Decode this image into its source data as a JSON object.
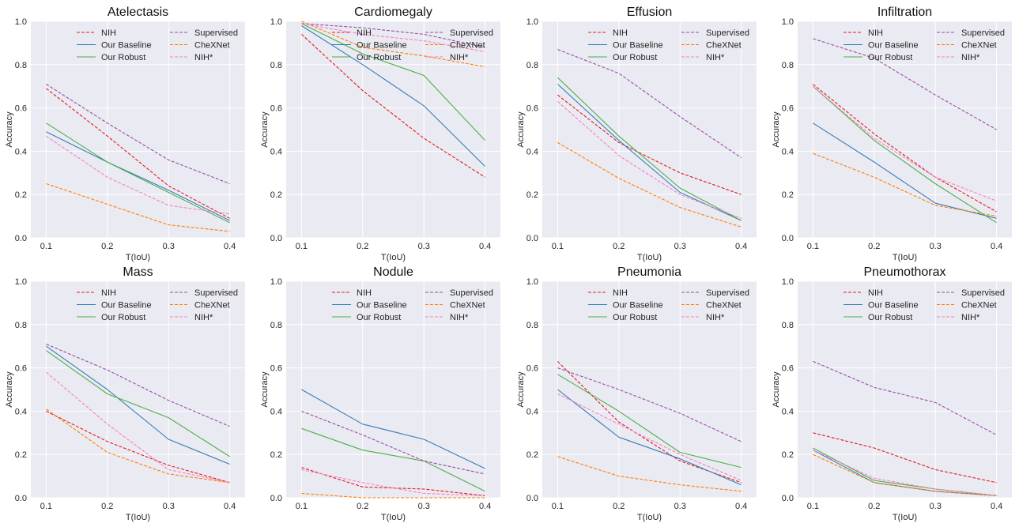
{
  "figure": {
    "colors": {
      "NIH": "#e41a1c",
      "Our Baseline": "#377eb8",
      "Our Robust": "#4daf4a",
      "Supervised": "#984ea3",
      "CheXNet": "#ff7f00",
      "NIH*": "#f781bf",
      "plot_background": "#eaeaf2",
      "grid": "#ffffff"
    }
  },
  "chart_data": [
    {
      "type": "line",
      "title": "Atelectasis",
      "xlabel": "T(IoU)",
      "ylabel": "Accuracy",
      "x": [
        0.1,
        0.2,
        0.3,
        0.4
      ],
      "xticks": [
        "0.1",
        "0.2",
        "0.3",
        "0.4"
      ],
      "ylim": [
        0,
        1
      ],
      "yticks": [
        "0.0",
        "0.2",
        "0.4",
        "0.6",
        "0.8",
        "1.0"
      ],
      "grid": true,
      "legend": "top-right, two columns",
      "series": [
        {
          "name": "NIH",
          "style": "dashed",
          "values": [
            0.69,
            0.47,
            0.24,
            0.09
          ]
        },
        {
          "name": "Our Baseline",
          "style": "solid",
          "values": [
            0.49,
            0.35,
            0.22,
            0.08
          ]
        },
        {
          "name": "Our Robust",
          "style": "solid",
          "values": [
            0.53,
            0.35,
            0.21,
            0.07
          ]
        },
        {
          "name": "Supervised",
          "style": "dashed",
          "values": [
            0.71,
            0.53,
            0.36,
            0.25
          ]
        },
        {
          "name": "CheXNet",
          "style": "dashed",
          "values": [
            0.25,
            0.155,
            0.06,
            0.03
          ]
        },
        {
          "name": "NIH*",
          "style": "dashed",
          "values": [
            0.47,
            0.28,
            0.15,
            0.11
          ]
        }
      ]
    },
    {
      "type": "line",
      "title": "Cardiomegaly",
      "xlabel": "T(IoU)",
      "ylabel": "Accuracy",
      "x": [
        0.1,
        0.2,
        0.3,
        0.4
      ],
      "xticks": [
        "0.1",
        "0.2",
        "0.3",
        "0.4"
      ],
      "ylim": [
        0,
        1
      ],
      "yticks": [
        "0.0",
        "0.2",
        "0.4",
        "0.6",
        "0.8",
        "1.0"
      ],
      "grid": true,
      "legend": "top-right, two columns",
      "series": [
        {
          "name": "NIH",
          "style": "dashed",
          "values": [
            0.94,
            0.68,
            0.46,
            0.28
          ]
        },
        {
          "name": "Our Baseline",
          "style": "solid",
          "values": [
            0.98,
            0.8,
            0.61,
            0.33
          ]
        },
        {
          "name": "Our Robust",
          "style": "solid",
          "values": [
            0.99,
            0.85,
            0.75,
            0.45
          ]
        },
        {
          "name": "Supervised",
          "style": "dashed",
          "values": [
            0.99,
            0.97,
            0.94,
            0.88
          ]
        },
        {
          "name": "CheXNet",
          "style": "dashed",
          "values": [
            1.0,
            0.88,
            0.84,
            0.79
          ]
        },
        {
          "name": "NIH*",
          "style": "dashed",
          "values": [
            0.99,
            0.94,
            0.91,
            0.86
          ]
        }
      ]
    },
    {
      "type": "line",
      "title": "Effusion",
      "xlabel": "T(IoU)",
      "ylabel": "Accuracy",
      "x": [
        0.1,
        0.2,
        0.3,
        0.4
      ],
      "xticks": [
        "0.1",
        "0.2",
        "0.3",
        "0.4"
      ],
      "ylim": [
        0,
        1
      ],
      "yticks": [
        "0.0",
        "0.2",
        "0.4",
        "0.6",
        "0.8",
        "1.0"
      ],
      "grid": true,
      "legend": "top-right, two columns",
      "series": [
        {
          "name": "NIH",
          "style": "dashed",
          "values": [
            0.66,
            0.44,
            0.3,
            0.2
          ]
        },
        {
          "name": "Our Baseline",
          "style": "solid",
          "values": [
            0.71,
            0.45,
            0.21,
            0.08
          ]
        },
        {
          "name": "Our Robust",
          "style": "solid",
          "values": [
            0.74,
            0.47,
            0.23,
            0.08
          ]
        },
        {
          "name": "Supervised",
          "style": "dashed",
          "values": [
            0.87,
            0.76,
            0.56,
            0.37
          ]
        },
        {
          "name": "CheXNet",
          "style": "dashed",
          "values": [
            0.44,
            0.275,
            0.14,
            0.05
          ]
        },
        {
          "name": "NIH*",
          "style": "dashed",
          "values": [
            0.63,
            0.38,
            0.2,
            0.09
          ]
        }
      ]
    },
    {
      "type": "line",
      "title": "Infiltration",
      "xlabel": "T(IoU)",
      "ylabel": "Accuracy",
      "x": [
        0.1,
        0.2,
        0.3,
        0.4
      ],
      "xticks": [
        "0.1",
        "0.2",
        "0.3",
        "0.4"
      ],
      "ylim": [
        0,
        1
      ],
      "yticks": [
        "0.0",
        "0.2",
        "0.4",
        "0.6",
        "0.8",
        "1.0"
      ],
      "grid": true,
      "legend": "top-right, two columns",
      "series": [
        {
          "name": "NIH",
          "style": "dashed",
          "values": [
            0.71,
            0.48,
            0.28,
            0.12
          ]
        },
        {
          "name": "Our Baseline",
          "style": "solid",
          "values": [
            0.53,
            0.35,
            0.16,
            0.09
          ]
        },
        {
          "name": "Our Robust",
          "style": "solid",
          "values": [
            0.7,
            0.45,
            0.25,
            0.07
          ]
        },
        {
          "name": "Supervised",
          "style": "dashed",
          "values": [
            0.92,
            0.83,
            0.66,
            0.5
          ]
        },
        {
          "name": "CheXNet",
          "style": "dashed",
          "values": [
            0.39,
            0.28,
            0.15,
            0.1
          ]
        },
        {
          "name": "NIH*",
          "style": "dashed",
          "values": [
            0.7,
            0.46,
            0.28,
            0.17
          ]
        }
      ]
    },
    {
      "type": "line",
      "title": "Mass",
      "xlabel": "T(IoU)",
      "ylabel": "Accuracy",
      "x": [
        0.1,
        0.2,
        0.3,
        0.4
      ],
      "xticks": [
        "0.1",
        "0.2",
        "0.3",
        "0.4"
      ],
      "ylim": [
        0,
        1
      ],
      "yticks": [
        "0.0",
        "0.2",
        "0.4",
        "0.6",
        "0.8",
        "1.0"
      ],
      "grid": true,
      "legend": "top-right, two columns",
      "series": [
        {
          "name": "NIH",
          "style": "dashed",
          "values": [
            0.4,
            0.26,
            0.15,
            0.07
          ]
        },
        {
          "name": "Our Baseline",
          "style": "solid",
          "values": [
            0.7,
            0.5,
            0.27,
            0.155
          ]
        },
        {
          "name": "Our Robust",
          "style": "solid",
          "values": [
            0.68,
            0.48,
            0.37,
            0.19
          ]
        },
        {
          "name": "Supervised",
          "style": "dashed",
          "values": [
            0.71,
            0.59,
            0.45,
            0.33
          ]
        },
        {
          "name": "CheXNet",
          "style": "dashed",
          "values": [
            0.41,
            0.21,
            0.11,
            0.07
          ]
        },
        {
          "name": "NIH*",
          "style": "dashed",
          "values": [
            0.58,
            0.34,
            0.13,
            0.07
          ]
        }
      ]
    },
    {
      "type": "line",
      "title": "Nodule",
      "xlabel": "T(IoU)",
      "ylabel": "Accuracy",
      "x": [
        0.1,
        0.2,
        0.3,
        0.4
      ],
      "xticks": [
        "0.1",
        "0.2",
        "0.3",
        "0.4"
      ],
      "ylim": [
        0,
        1
      ],
      "yticks": [
        "0.0",
        "0.2",
        "0.4",
        "0.6",
        "0.8",
        "1.0"
      ],
      "grid": true,
      "legend": "top-right, two columns",
      "series": [
        {
          "name": "NIH",
          "style": "dashed",
          "values": [
            0.14,
            0.05,
            0.04,
            0.01
          ]
        },
        {
          "name": "Our Baseline",
          "style": "solid",
          "values": [
            0.5,
            0.34,
            0.27,
            0.135
          ]
        },
        {
          "name": "Our Robust",
          "style": "solid",
          "values": [
            0.32,
            0.22,
            0.17,
            0.03
          ]
        },
        {
          "name": "Supervised",
          "style": "dashed",
          "values": [
            0.4,
            0.29,
            0.17,
            0.11
          ]
        },
        {
          "name": "CheXNet",
          "style": "dashed",
          "values": [
            0.02,
            0.0,
            0.0,
            0.0
          ]
        },
        {
          "name": "NIH*",
          "style": "dashed",
          "values": [
            0.13,
            0.07,
            0.02,
            0.01
          ]
        }
      ]
    },
    {
      "type": "line",
      "title": "Pneumonia",
      "xlabel": "T(IoU)",
      "ylabel": "Accuracy",
      "x": [
        0.1,
        0.2,
        0.3,
        0.4
      ],
      "xticks": [
        "0.1",
        "0.2",
        "0.3",
        "0.4"
      ],
      "ylim": [
        0,
        1
      ],
      "yticks": [
        "0.0",
        "0.2",
        "0.4",
        "0.6",
        "0.8",
        "1.0"
      ],
      "grid": true,
      "legend": "top-right, two columns",
      "series": [
        {
          "name": "NIH",
          "style": "dashed",
          "values": [
            0.63,
            0.35,
            0.17,
            0.07
          ]
        },
        {
          "name": "Our Baseline",
          "style": "solid",
          "values": [
            0.5,
            0.28,
            0.18,
            0.06
          ]
        },
        {
          "name": "Our Robust",
          "style": "solid",
          "values": [
            0.57,
            0.4,
            0.21,
            0.14
          ]
        },
        {
          "name": "Supervised",
          "style": "dashed",
          "values": [
            0.6,
            0.5,
            0.39,
            0.26
          ]
        },
        {
          "name": "CheXNet",
          "style": "dashed",
          "values": [
            0.19,
            0.1,
            0.06,
            0.03
          ]
        },
        {
          "name": "NIH*",
          "style": "dashed",
          "values": [
            0.48,
            0.34,
            0.2,
            0.08
          ]
        }
      ]
    },
    {
      "type": "line",
      "title": "Pneumothorax",
      "xlabel": "T(IoU)",
      "ylabel": "Accuracy",
      "x": [
        0.1,
        0.2,
        0.3,
        0.4
      ],
      "xticks": [
        "0.1",
        "0.2",
        "0.3",
        "0.4"
      ],
      "ylim": [
        0,
        1
      ],
      "yticks": [
        "0.0",
        "0.2",
        "0.4",
        "0.6",
        "0.8",
        "1.0"
      ],
      "grid": true,
      "legend": "top-right, two columns",
      "series": [
        {
          "name": "NIH",
          "style": "dashed",
          "values": [
            0.3,
            0.23,
            0.13,
            0.07
          ]
        },
        {
          "name": "Our Baseline",
          "style": "solid",
          "values": [
            0.22,
            0.07,
            0.03,
            0.01
          ]
        },
        {
          "name": "Our Robust",
          "style": "solid",
          "values": [
            0.23,
            0.08,
            0.04,
            0.01
          ]
        },
        {
          "name": "Supervised",
          "style": "dashed",
          "values": [
            0.63,
            0.51,
            0.44,
            0.29
          ]
        },
        {
          "name": "CheXNet",
          "style": "dashed",
          "values": [
            0.2,
            0.07,
            0.03,
            0.01
          ]
        },
        {
          "name": "NIH*",
          "style": "dashed",
          "values": [
            0.22,
            0.09,
            0.04,
            0.01
          ]
        }
      ]
    }
  ]
}
